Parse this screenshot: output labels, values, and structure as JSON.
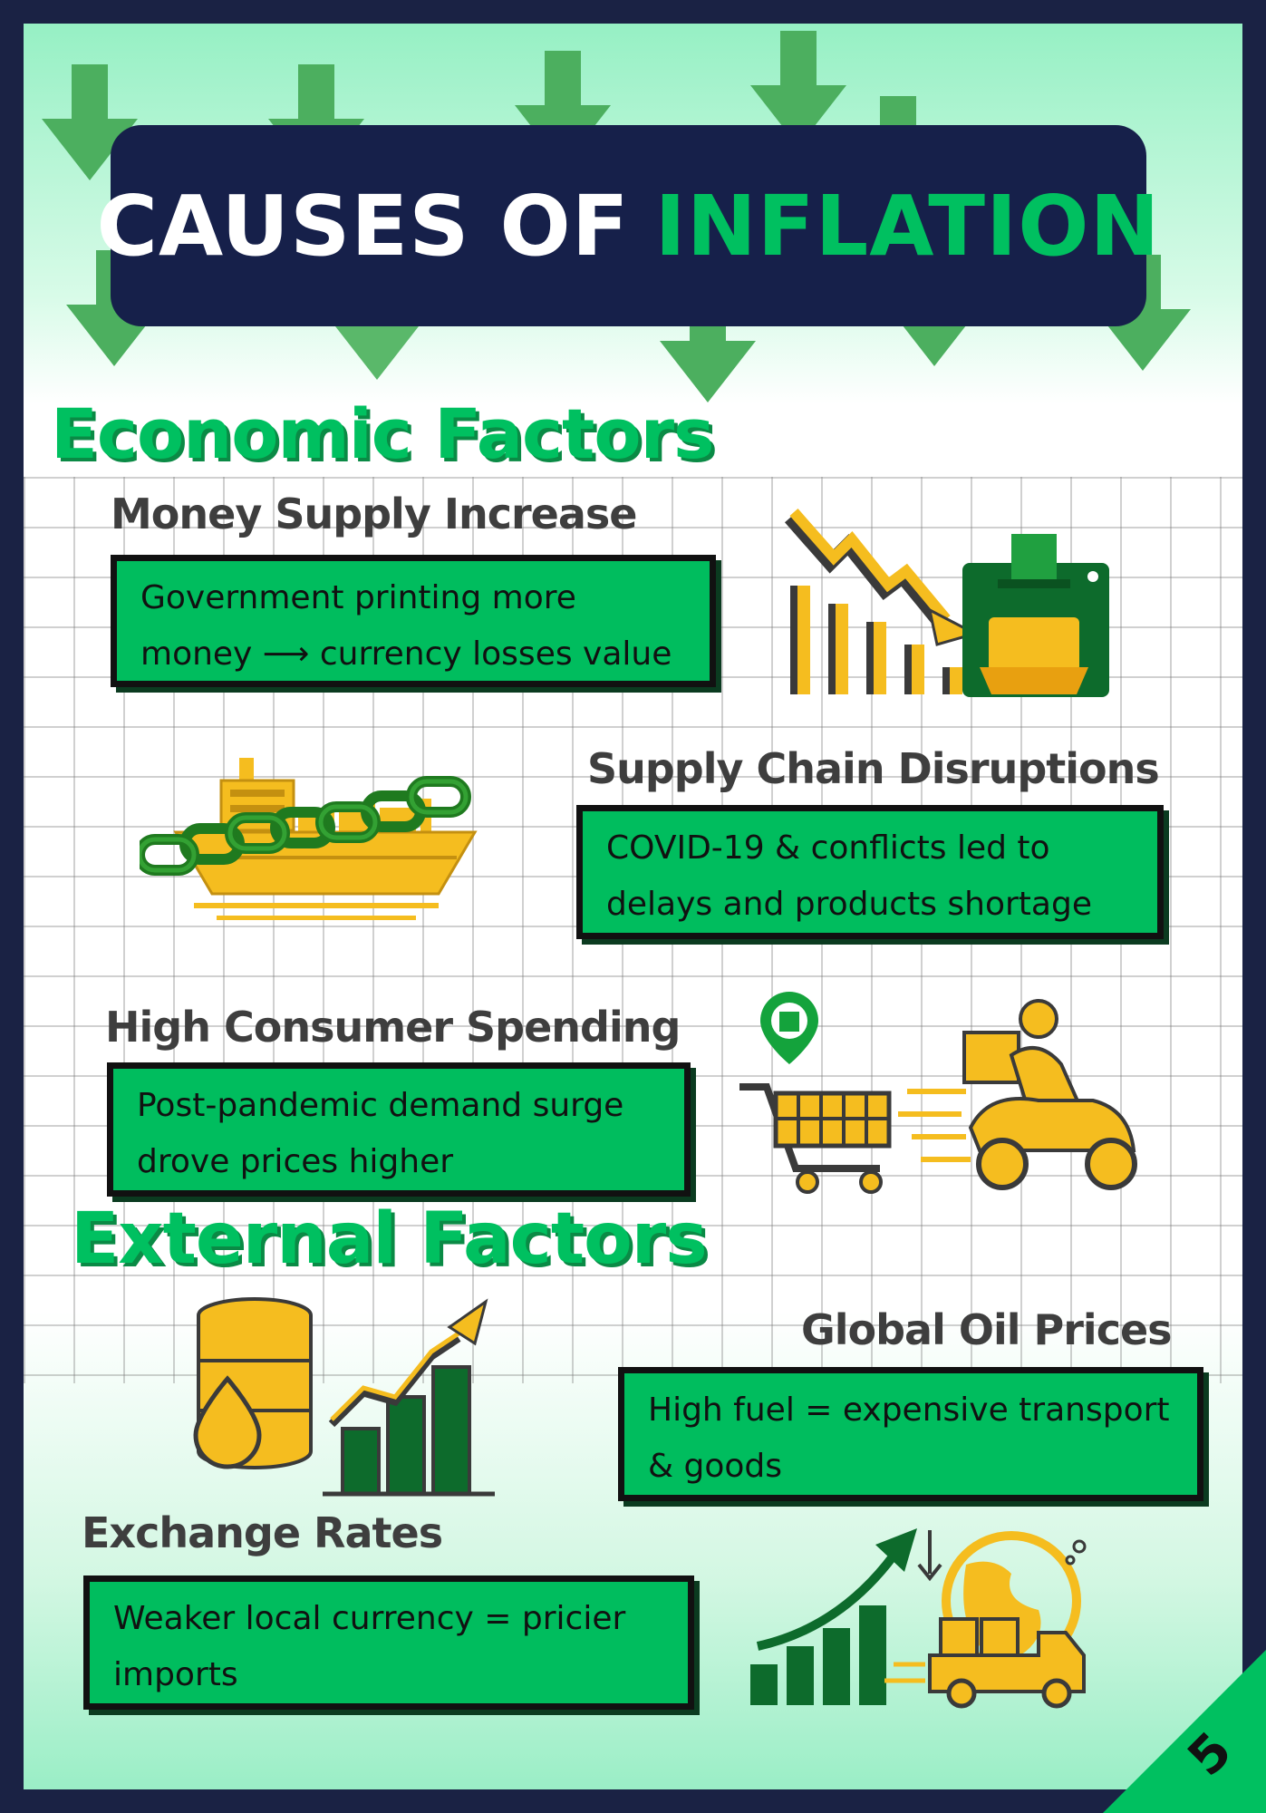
{
  "title": {
    "part1": "CAUSES OF",
    "part2": "INFLATION"
  },
  "colors": {
    "navy": "#16204a",
    "accent_green": "#00c060",
    "box_green": "#00bd5e",
    "gold": "#f5bd1f",
    "dark_green": "#0d6b2c"
  },
  "sections": {
    "economic": {
      "heading": "Economic Factors",
      "items": [
        {
          "title": "Money Supply Increase",
          "text": "Government  printing more\nmoney ⟶ currency losses value",
          "icon": "money-printer-icon"
        },
        {
          "title": "Supply Chain  Disruptions",
          "text": "COVID-19 & conflicts led to\ndelays and products shortage",
          "icon": "chained-cargo-ship-icon"
        },
        {
          "title": "High Consumer Spending",
          "text": "Post-pandemic demand surge\ndrove prices higher",
          "icon": "shopping-delivery-icon"
        }
      ]
    },
    "external": {
      "heading": "External Factors",
      "items": [
        {
          "title": "Global Oil Prices",
          "text": "High fuel = expensive transport\n& goods",
          "icon": "oil-barrel-chart-icon"
        },
        {
          "title": "Exchange Rates",
          "text": "Weaker local currency = pricier\nimports",
          "icon": "global-trade-icon"
        }
      ]
    }
  },
  "page_number": "5"
}
